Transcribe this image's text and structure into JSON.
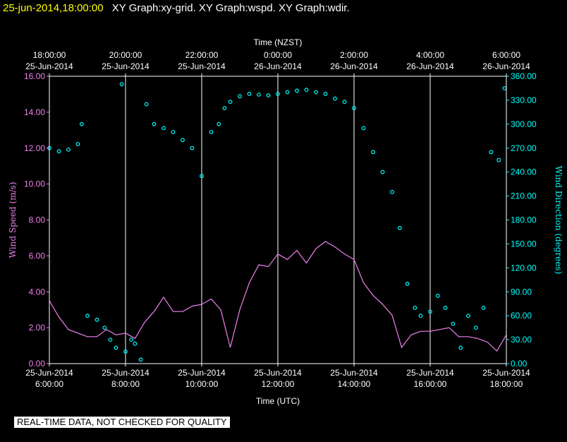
{
  "header": {
    "date": "25-jun-2014,18:00:00",
    "graphs": "XY Graph:xy-grid.  XY Graph:wspd.  XY Graph:wdir."
  },
  "footer_notice": "REAL-TIME DATA, NOT CHECKED FOR QUALITY",
  "colors": {
    "wspd": "#ee82ee",
    "wdir": "#00ffff",
    "axis": "#ffffff",
    "title": "#ffff00"
  },
  "chart_data": {
    "type": "line",
    "top_axis_label": "Time (NZST)",
    "bottom_axis_label": "Time (UTC)",
    "y_left_label": "Wind Speed (m/s)",
    "y_right_label": "Wind Direction (degrees)",
    "x_range_utc_hours": [
      6,
      18
    ],
    "top_ticks": [
      {
        "time": "18:00:00",
        "date": "25-Jun-2014"
      },
      {
        "time": "20:00:00",
        "date": "25-Jun-2014"
      },
      {
        "time": "22:00:00",
        "date": "25-Jun-2014"
      },
      {
        "time": "0:00:00",
        "date": "26-Jun-2014"
      },
      {
        "time": "2:00:00",
        "date": "26-Jun-2014"
      },
      {
        "time": "4:00:00",
        "date": "26-Jun-2014"
      },
      {
        "time": "6:00:00",
        "date": "26-Jun-2014"
      }
    ],
    "bottom_ticks": [
      {
        "date": "25-Jun-2014",
        "time": "6:00:00"
      },
      {
        "date": "25-Jun-2014",
        "time": "8:00:00"
      },
      {
        "date": "25-Jun-2014",
        "time": "10:00:00"
      },
      {
        "date": "25-Jun-2014",
        "time": "12:00:00"
      },
      {
        "date": "25-Jun-2014",
        "time": "14:00:00"
      },
      {
        "date": "25-Jun-2014",
        "time": "16:00:00"
      },
      {
        "date": "25-Jun-2014",
        "time": "18:00:00"
      }
    ],
    "y_left_ticks": [
      "0.00",
      "2.00",
      "4.00",
      "6.00",
      "8.00",
      "10.00",
      "12.00",
      "14.00",
      "16.00"
    ],
    "y_left_range": [
      0,
      16
    ],
    "y_right_ticks": [
      "0.00",
      "30.00",
      "60.00",
      "90.00",
      "120.00",
      "150.00",
      "180.00",
      "210.00",
      "240.00",
      "270.00",
      "300.00",
      "330.00",
      "360.00"
    ],
    "y_right_range": [
      0,
      360
    ],
    "grid": "vertical",
    "series": [
      {
        "name": "Wind Speed (m/s)",
        "style": "line",
        "x": [
          6.0,
          6.25,
          6.5,
          6.75,
          7.0,
          7.25,
          7.5,
          7.75,
          8.0,
          8.25,
          8.5,
          8.75,
          9.0,
          9.25,
          9.5,
          9.75,
          10.0,
          10.25,
          10.5,
          10.75,
          11.0,
          11.25,
          11.5,
          11.75,
          12.0,
          12.25,
          12.5,
          12.75,
          13.0,
          13.25,
          13.5,
          13.75,
          14.0,
          14.25,
          14.5,
          14.75,
          15.0,
          15.25,
          15.5,
          15.75,
          16.0,
          16.25,
          16.5,
          16.75,
          17.0,
          17.25,
          17.5,
          17.75,
          18.0
        ],
        "values": [
          3.5,
          2.6,
          1.9,
          1.7,
          1.5,
          1.5,
          1.9,
          1.6,
          1.7,
          1.4,
          2.3,
          2.9,
          3.7,
          2.9,
          2.9,
          3.2,
          3.3,
          3.6,
          3.0,
          0.9,
          3.0,
          4.5,
          5.5,
          5.4,
          6.1,
          5.8,
          6.3,
          5.6,
          6.4,
          6.8,
          6.5,
          6.1,
          5.8,
          4.5,
          3.8,
          3.3,
          2.7,
          0.9,
          1.6,
          1.8,
          1.8,
          1.9,
          2.0,
          1.5,
          1.5,
          1.4,
          1.2,
          0.7,
          1.6
        ]
      },
      {
        "name": "Wind Direction (degrees)",
        "style": "points",
        "x": [
          6.0,
          6.25,
          6.5,
          6.75,
          6.85,
          7.0,
          7.25,
          7.45,
          7.6,
          7.75,
          7.9,
          8.0,
          8.15,
          8.25,
          8.4,
          8.55,
          8.75,
          9.0,
          9.25,
          9.5,
          9.75,
          10.0,
          10.25,
          10.45,
          10.6,
          10.75,
          11.0,
          11.25,
          11.5,
          11.75,
          12.0,
          12.25,
          12.5,
          12.75,
          13.0,
          13.25,
          13.5,
          13.75,
          14.0,
          14.25,
          14.5,
          14.75,
          15.0,
          15.2,
          15.4,
          15.6,
          15.75,
          16.0,
          16.2,
          16.4,
          16.6,
          16.8,
          17.0,
          17.2,
          17.4,
          17.6,
          17.8,
          17.95
        ],
        "values": [
          270,
          266,
          268,
          275,
          300,
          60,
          55,
          45,
          30,
          20,
          350,
          15,
          30,
          25,
          5,
          325,
          300,
          295,
          290,
          280,
          270,
          235,
          290,
          300,
          320,
          328,
          335,
          338,
          337,
          336,
          338,
          340,
          342,
          343,
          340,
          338,
          332,
          328,
          320,
          295,
          265,
          240,
          215,
          170,
          100,
          70,
          60,
          65,
          85,
          70,
          50,
          20,
          60,
          45,
          70,
          265,
          255,
          345
        ]
      }
    ]
  }
}
